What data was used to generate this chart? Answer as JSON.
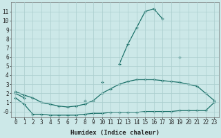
{
  "xlabel": "Humidex (Indice chaleur)",
  "ylabel": "",
  "bg_color": "#cce8e8",
  "grid_color": "#aacece",
  "line_color": "#1a7068",
  "x_values": [
    0,
    1,
    2,
    3,
    4,
    5,
    6,
    7,
    8,
    9,
    10,
    11,
    12,
    13,
    14,
    15,
    16,
    17,
    18,
    19,
    20,
    21,
    22,
    23
  ],
  "line_top": [
    2.0,
    1.5,
    null,
    null,
    null,
    null,
    null,
    null,
    1.2,
    null,
    3.2,
    null,
    5.2,
    7.4,
    9.2,
    11.0,
    11.3,
    10.2,
    null,
    6.0,
    null,
    null,
    null,
    null
  ],
  "line_mid": [
    2.2,
    1.8,
    1.5,
    1.0,
    0.8,
    0.6,
    0.5,
    0.6,
    0.8,
    1.2,
    2.0,
    2.5,
    3.0,
    3.3,
    3.5,
    3.5,
    3.5,
    3.4,
    3.3,
    3.2,
    3.0,
    2.8,
    2.0,
    1.2
  ],
  "line_bot": [
    1.5,
    0.8,
    -0.3,
    -0.3,
    -0.4,
    -0.4,
    -0.4,
    -0.4,
    -0.3,
    -0.2,
    -0.2,
    -0.1,
    -0.1,
    -0.1,
    -0.1,
    -0.0,
    -0.0,
    0.0,
    0.0,
    0.1,
    0.1,
    0.1,
    0.1,
    1.0
  ],
  "ylim": [
    -0.6,
    12.0
  ],
  "xlim": [
    -0.5,
    23.5
  ],
  "yticks": [
    0,
    1,
    2,
    3,
    4,
    5,
    6,
    7,
    8,
    9,
    10,
    11
  ],
  "xticks": [
    0,
    1,
    2,
    3,
    4,
    5,
    6,
    7,
    8,
    9,
    10,
    11,
    12,
    13,
    14,
    15,
    16,
    17,
    18,
    19,
    20,
    21,
    22,
    23
  ],
  "tick_fontsize": 5.5,
  "xlabel_fontsize": 6.5
}
